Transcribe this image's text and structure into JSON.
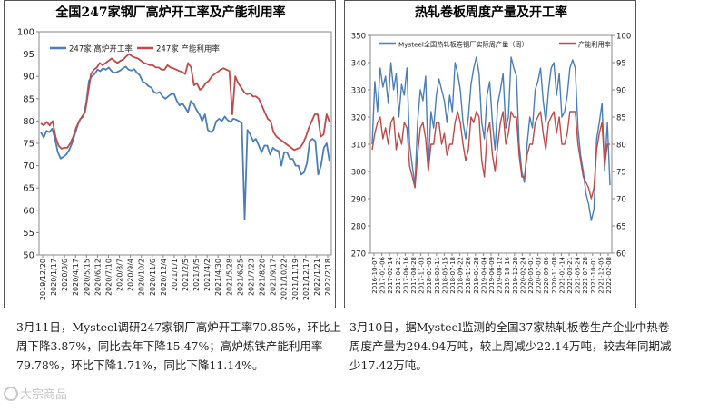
{
  "chart_data": [
    {
      "type": "line",
      "title": "全国247家钢厂高炉开工率及产能利用率",
      "ylim": [
        50,
        100
      ],
      "y_ticks": [
        50,
        55,
        60,
        65,
        70,
        75,
        80,
        85,
        90,
        95,
        100
      ],
      "x_tick_labels": [
        "2019/12/20",
        "2020/1/17",
        "2020/3/6",
        "2020/4/17",
        "2020/5/15",
        "2020/6/12",
        "2020/7/10",
        "2020/8/7",
        "2020/9/4",
        "2020/10/2",
        "2020/11/6",
        "2020/12/4",
        "2021/1/1",
        "2021/2/5",
        "2021/3/5",
        "2021/4/2",
        "2021/4/30",
        "2021/5/28",
        "2021/6/25",
        "2021/7/23",
        "2021/8/20",
        "2021/9/17",
        "2021/10/22",
        "2021/11/19",
        "2021/12/17",
        "2022/1/21",
        "2022/2/18"
      ],
      "legend_position": "top-left",
      "grid": false,
      "series": [
        {
          "name": "247家 高炉开工率",
          "color": "#4a7ebb",
          "values": [
            77.5,
            76.3,
            77.8,
            77.5,
            78.3,
            76.0,
            73.0,
            71.6,
            72.0,
            72.5,
            73.5,
            75.0,
            77.0,
            79.0,
            80.5,
            81.0,
            84.0,
            89.0,
            90.0,
            90.5,
            91.5,
            91.2,
            91.8,
            91.5,
            92.0,
            91.2,
            90.8,
            91.0,
            91.3,
            91.8,
            92.2,
            91.5,
            91.3,
            91.6,
            90.8,
            90.2,
            88.8,
            88.5,
            87.8,
            87.5,
            86.5,
            86.2,
            86.5,
            85.5,
            85.0,
            85.5,
            86.0,
            86.2,
            84.6,
            83.5,
            84.0,
            83.0,
            82.0,
            84.5,
            83.8,
            82.5,
            81.5,
            80.0,
            81.5,
            78.0,
            77.5,
            78.0,
            80.0,
            80.5,
            80.0,
            81.0,
            80.2,
            79.8,
            80.5,
            80.3,
            80.0,
            79.5,
            58.0,
            78.0,
            77.0,
            75.5,
            76.0,
            74.5,
            73.0,
            74.5,
            74.5,
            72.5,
            74.0,
            73.5,
            73.3,
            70.0,
            73.0,
            73.0,
            71.5,
            71.5,
            70.0,
            70.0,
            68.0,
            68.5,
            70.5,
            75.5,
            76.0,
            75.5,
            68.0,
            70.0,
            74.0,
            75.0,
            70.85
          ]
        },
        {
          "name": "247家 产能利用率",
          "color": "#be4b48",
          "values": [
            79.5,
            79.0,
            79.8,
            79.0,
            80.0,
            76.5,
            74.5,
            73.8,
            74.0,
            74.0,
            75.0,
            76.5,
            78.5,
            80.0,
            81.0,
            82.0,
            86.0,
            90.5,
            91.5,
            92.0,
            93.0,
            92.5,
            93.0,
            93.5,
            94.0,
            93.5,
            93.0,
            93.5,
            93.8,
            94.5,
            95.0,
            94.5,
            94.2,
            94.0,
            93.5,
            93.0,
            92.8,
            92.5,
            92.5,
            92.0,
            92.0,
            91.5,
            91.5,
            92.5,
            92.0,
            91.8,
            91.5,
            91.2,
            91.0,
            90.5,
            93.0,
            92.0,
            88.0,
            88.5,
            87.0,
            87.5,
            88.5,
            89.0,
            90.0,
            90.5,
            91.0,
            91.5,
            91.8,
            91.5,
            91.2,
            81.5,
            90.0,
            88.5,
            87.5,
            86.5,
            86.0,
            86.2,
            85.5,
            85.5,
            85.0,
            83.5,
            82.0,
            80.5,
            80.0,
            77.5,
            76.5,
            76.0,
            75.5,
            75.0,
            74.5,
            74.0,
            73.5,
            73.8,
            74.0,
            75.0,
            76.5,
            78.5,
            80.0,
            81.5,
            81.5,
            76.5,
            77.0,
            81.5,
            79.78
          ]
        }
      ]
    },
    {
      "type": "line",
      "title": "热轧卷板周度产量及开工率",
      "ylim": [
        270,
        350
      ],
      "y_ticks": [
        270,
        280,
        290,
        300,
        310,
        320,
        330,
        340,
        350
      ],
      "y2lim": [
        60,
        100
      ],
      "y2_ticks": [
        60,
        65,
        70,
        75,
        80,
        85,
        90,
        95,
        100
      ],
      "x_tick_labels": [
        "2016-10-07",
        "2017-01-06",
        "2017-02-14",
        "2017-04-21",
        "2017-06-16",
        "2017-08-28",
        "2017-11-03",
        "2018-01-05",
        "2018-03-11",
        "2018-05-15",
        "2018-07-18",
        "2018-09-22",
        "2018-11-26",
        "2019-01-28",
        "2019-04-04",
        "2019-06-09",
        "2019-08-12",
        "2019-10-16",
        "2019-12-20",
        "2020-02-24",
        "2020-05-01",
        "2020-07-03",
        "2020-09-06",
        "2020-11-08",
        "2021-01-14",
        "2021-03-21",
        "2021-05-24",
        "2021-07-28",
        "2021-10-01",
        "2021-12-05",
        "2022-02-08"
      ],
      "legend_position": "top",
      "grid": false,
      "series": [
        {
          "name": "Mysteel全国热轧板卷钢厂实际周产量（周）",
          "color": "#4a7ebb",
          "axis": "left",
          "values": [
            310,
            333,
            322,
            338,
            331,
            335,
            325,
            340,
            330,
            336,
            320,
            332,
            328,
            338,
            310,
            302,
            295,
            318,
            330,
            326,
            335,
            302,
            322,
            316,
            328,
            334,
            330,
            326,
            318,
            328,
            322,
            340,
            336,
            330,
            318,
            312,
            320,
            332,
            338,
            342,
            336,
            318,
            312,
            328,
            333,
            318,
            308,
            325,
            330,
            336,
            316,
            320,
            342,
            338,
            335,
            310,
            300,
            296,
            310,
            320,
            316,
            330,
            333,
            338,
            326,
            318,
            330,
            338,
            340,
            328,
            336,
            320,
            322,
            328,
            338,
            341,
            338,
            316,
            306,
            300,
            292,
            288,
            282,
            286,
            312,
            318,
            325,
            300,
            318,
            294.94
          ]
        },
        {
          "name": "产能利用率",
          "color": "#be4b48",
          "axis": "right",
          "values": [
            79,
            82,
            84,
            85,
            81,
            83,
            80,
            84,
            85,
            79,
            82,
            80,
            84,
            83,
            76,
            74,
            72,
            78,
            83,
            84,
            81,
            75,
            80,
            80,
            84,
            84,
            80,
            82,
            78,
            80,
            80,
            84,
            86,
            84,
            80,
            77,
            79,
            85,
            84,
            86,
            85,
            77,
            74,
            82,
            84,
            78,
            75,
            80,
            84,
            86,
            80,
            82,
            86,
            85,
            85,
            78,
            74,
            74,
            78,
            80,
            80,
            84,
            85,
            86,
            82,
            79,
            84,
            85,
            86,
            82,
            85,
            80,
            80,
            82,
            86,
            86,
            86,
            80,
            77,
            74,
            73,
            72,
            70,
            72,
            79,
            82,
            84,
            76,
            80,
            80
          ]
        }
      ]
    }
  ],
  "captions": {
    "left": "3月11日，Mysteel调研247家钢厂高炉开工率70.85%，环比上周下降3.87%，同比去年下降15.47%；高炉炼铁产能利用率79.78%，环比下降1.71%，同比下降11.14%。",
    "right": "3月10日，据Mysteel监测的全国37家热轧板卷生产企业中热卷周度产量为294.94万吨，较上周减少22.14万吨，较去年同期减少17.42万吨。"
  },
  "watermark": "大宗商品"
}
